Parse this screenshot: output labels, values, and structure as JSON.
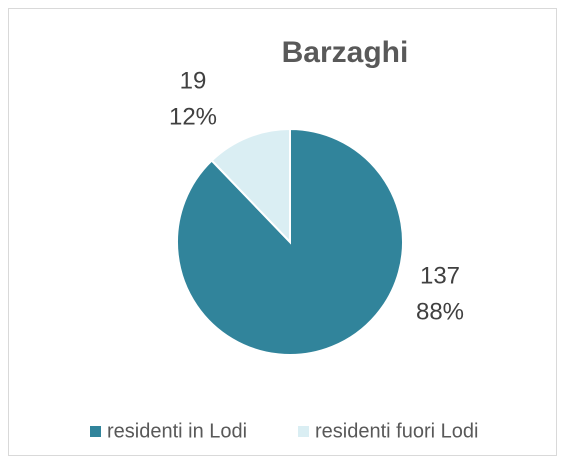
{
  "chart_data": {
    "type": "pie",
    "title": "Barzaghi",
    "categories": [
      "residenti in Lodi",
      "residenti fuori Lodi"
    ],
    "values": [
      137,
      19
    ],
    "percent_labels": [
      "88%",
      "12%"
    ],
    "colors": [
      "#31849b",
      "#daeef3"
    ],
    "legend": "bottom"
  }
}
